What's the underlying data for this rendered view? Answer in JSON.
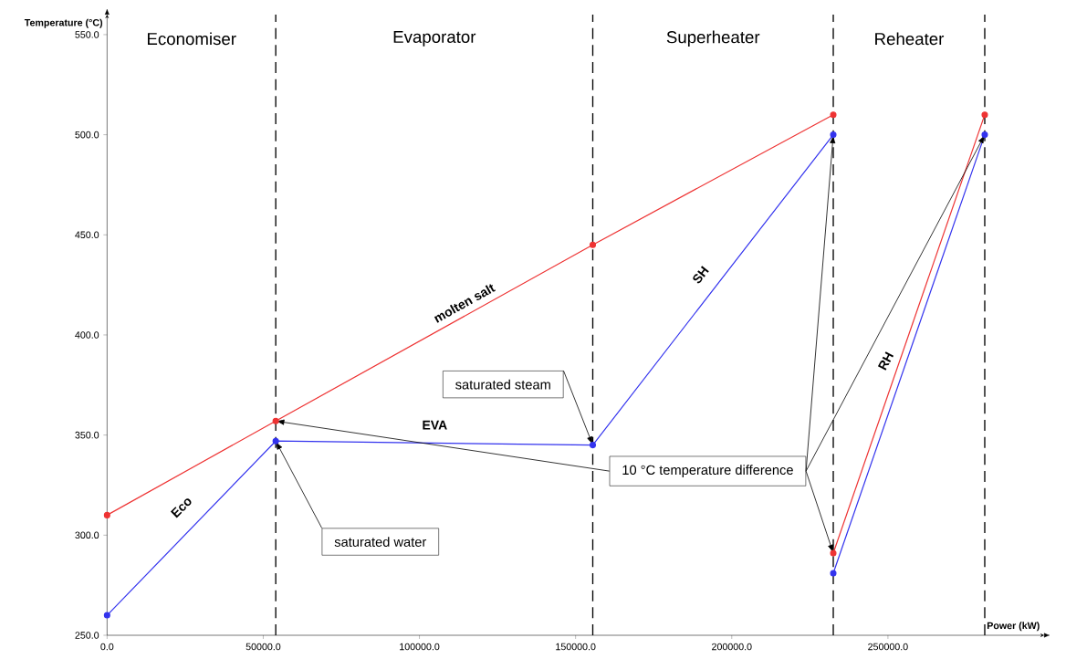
{
  "chart_data": {
    "type": "line",
    "xlabel": "Power (kW)",
    "ylabel": "Temperature (°C)",
    "xlim": [
      0,
      300000
    ],
    "ylim": [
      250,
      560
    ],
    "xticks": [
      {
        "value": 0,
        "label": "0.0"
      },
      {
        "value": 50000,
        "label": "50000.0"
      },
      {
        "value": 100000,
        "label": "100000.0"
      },
      {
        "value": 150000,
        "label": "150000.0"
      },
      {
        "value": 200000,
        "label": "200000.0"
      },
      {
        "value": 250000,
        "label": "250000.0"
      }
    ],
    "yticks": [
      {
        "value": 250,
        "label": "250.0"
      },
      {
        "value": 300,
        "label": "300.0"
      },
      {
        "value": 350,
        "label": "350.0"
      },
      {
        "value": 400,
        "label": "400.0"
      },
      {
        "value": 450,
        "label": "450.0"
      },
      {
        "value": 500,
        "label": "500.0"
      },
      {
        "value": 550,
        "label": "550.0"
      }
    ],
    "marker": "circle",
    "line_style": "solid",
    "series": [
      {
        "color": "#ee3333",
        "x": [
          0,
          54000,
          155500,
          232500
        ],
        "values": [
          310,
          357,
          445,
          510
        ]
      },
      {
        "color": "#ee3333",
        "x": [
          232500,
          281000
        ],
        "values": [
          291,
          510
        ]
      },
      {
        "color": "#3333ee",
        "x": [
          0,
          54000,
          155500,
          232500
        ],
        "values": [
          260,
          347,
          345,
          500
        ]
      },
      {
        "color": "#3333ee",
        "x": [
          232500,
          281000
        ],
        "values": [
          281,
          500
        ]
      }
    ],
    "ref_lines": [
      {
        "axis": "x",
        "value": 54000,
        "line_style": "dashed"
      },
      {
        "axis": "x",
        "value": 155500,
        "line_style": "dashed"
      },
      {
        "axis": "x",
        "value": 232500,
        "line_style": "dashed"
      },
      {
        "axis": "x",
        "value": 281000,
        "line_style": "dashed"
      }
    ],
    "annotations": [
      "Economiser",
      "Evaporator",
      "Superheater",
      "Reheater",
      "molten salt",
      "Eco",
      "EVA",
      "SH",
      "RH",
      {
        "text": "saturated water",
        "x": 54000,
        "y": 347
      },
      {
        "text": "saturated steam",
        "x": 155500,
        "y": 345
      },
      {
        "text": "10 °C temperature difference",
        "x": 232500,
        "y": 500
      }
    ]
  }
}
